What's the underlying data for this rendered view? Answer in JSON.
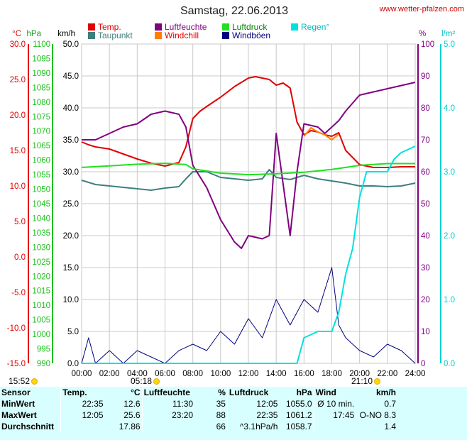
{
  "header": {
    "title": "Samstag, 22.06.2013",
    "site": "www.wetter-pfalzen.com"
  },
  "legend": [
    {
      "label": "Temp.",
      "color": "#e00000"
    },
    {
      "label": "Taupunkt",
      "color": "#3d7f7f"
    },
    {
      "label": "Luftfeuchte",
      "color": "#800080"
    },
    {
      "label": "Windchill",
      "color": "#ff8000"
    },
    {
      "label": "Luftdruck",
      "color": "#20e020"
    },
    {
      "label": "Windböen",
      "color": "#000080"
    },
    {
      "label": "Regen°",
      "color": "#00e0e0"
    }
  ],
  "axis_units": {
    "temp": "°C",
    "pressure": "hPa",
    "wind": "km/h",
    "humidity": "%",
    "rain": "l/m²"
  },
  "markers": {
    "left_time": "15:52",
    "sunrise": "05:18",
    "sunset": "21:10"
  },
  "chart_data": {
    "type": "line",
    "x_unit": "hours",
    "x_ticks": [
      "00:00",
      "02:00",
      "04:00",
      "06:00",
      "08:00",
      "10:00",
      "12:00",
      "14:00",
      "16:00",
      "18:00",
      "20:00",
      "22:00",
      "24:00"
    ],
    "xlim": [
      0,
      24
    ],
    "axes": {
      "wind": {
        "ticks": [
          "0.0",
          "5.0",
          "10.0",
          "15.0",
          "20.0",
          "25.0",
          "30.0",
          "35.0",
          "40.0",
          "45.0",
          "50.0"
        ],
        "range": [
          0,
          50
        ],
        "color": "#000000"
      },
      "temp": {
        "ticks": [
          "-15.0",
          "-10.0",
          "-5.0",
          "0.0",
          "5.0",
          "10.0",
          "15.0",
          "20.0",
          "25.0",
          "30.0"
        ],
        "range": [
          -15,
          30
        ],
        "color": "#e00000"
      },
      "pressure": {
        "ticks": [
          "990",
          "995",
          "1000",
          "1005",
          "1010",
          "1015",
          "1020",
          "1025",
          "1030",
          "1035",
          "1040",
          "1045",
          "1050",
          "1055",
          "1060",
          "1065",
          "1070",
          "1075",
          "1080",
          "1085",
          "1090",
          "1095",
          "1100"
        ],
        "range": [
          990,
          1100
        ],
        "color": "#20c020"
      },
      "humidity": {
        "ticks": [
          "0",
          "10",
          "20",
          "30",
          "40",
          "50",
          "60",
          "70",
          "80",
          "90",
          "100"
        ],
        "range": [
          0,
          100
        ],
        "color": "#800080"
      },
      "rain": {
        "ticks": [
          "0.0",
          "1.0",
          "2.0",
          "3.0",
          "4.0",
          "5.0"
        ],
        "range": [
          0,
          5
        ],
        "color": "#00d0d0"
      }
    },
    "series": [
      {
        "name": "Temp.",
        "axis": "temp",
        "color": "#e00000",
        "points": [
          [
            0,
            16.2
          ],
          [
            0.5,
            15.8
          ],
          [
            1,
            15.5
          ],
          [
            2,
            15.2
          ],
          [
            3,
            14.5
          ],
          [
            4,
            13.8
          ],
          [
            5,
            13.2
          ],
          [
            6,
            12.8
          ],
          [
            7,
            13.3
          ],
          [
            7.5,
            15.5
          ],
          [
            8,
            19.5
          ],
          [
            8.5,
            20.5
          ],
          [
            9,
            21.2
          ],
          [
            10,
            22.5
          ],
          [
            11,
            24.0
          ],
          [
            12,
            25.2
          ],
          [
            12.5,
            25.4
          ],
          [
            13,
            25.2
          ],
          [
            13.5,
            25.0
          ],
          [
            14,
            24.2
          ],
          [
            14.5,
            24.5
          ],
          [
            15,
            23.8
          ],
          [
            15.5,
            19.0
          ],
          [
            16,
            17.2
          ],
          [
            16.5,
            17.8
          ],
          [
            17,
            17.6
          ],
          [
            17.5,
            17.2
          ],
          [
            18,
            17.0
          ],
          [
            18.5,
            17.5
          ],
          [
            19,
            15.0
          ],
          [
            20,
            13.0
          ],
          [
            21,
            12.6
          ],
          [
            22,
            12.6
          ],
          [
            23,
            12.7
          ],
          [
            24,
            12.7
          ]
        ]
      },
      {
        "name": "Taupunkt",
        "axis": "temp",
        "color": "#3d7f7f",
        "points": [
          [
            0,
            10.8
          ],
          [
            1,
            10.2
          ],
          [
            2,
            10.0
          ],
          [
            3,
            9.8
          ],
          [
            4,
            9.6
          ],
          [
            5,
            9.4
          ],
          [
            6,
            9.7
          ],
          [
            7,
            9.9
          ],
          [
            7.5,
            11.0
          ],
          [
            8,
            12.0
          ],
          [
            9,
            12.0
          ],
          [
            10,
            11.2
          ],
          [
            11,
            11.0
          ],
          [
            12,
            10.8
          ],
          [
            13,
            11.0
          ],
          [
            13.5,
            12.3
          ],
          [
            14,
            11.2
          ],
          [
            15,
            10.9
          ],
          [
            16,
            11.5
          ],
          [
            17,
            11.0
          ],
          [
            18,
            10.7
          ],
          [
            19,
            10.4
          ],
          [
            20,
            10.0
          ],
          [
            21,
            10.0
          ],
          [
            22,
            9.9
          ],
          [
            23,
            10.0
          ],
          [
            24,
            10.4
          ]
        ]
      },
      {
        "name": "Windchill",
        "axis": "temp",
        "color": "#ff8000",
        "points": [
          [
            16,
            17.0
          ],
          [
            16.5,
            18.2
          ],
          [
            17,
            17.6
          ],
          [
            17.5,
            17.2
          ],
          [
            18,
            16.5
          ],
          [
            18.5,
            17.3
          ]
        ]
      },
      {
        "name": "Luftfeuchte",
        "axis": "humidity",
        "color": "#800080",
        "points": [
          [
            0,
            70
          ],
          [
            1,
            70
          ],
          [
            2,
            72
          ],
          [
            3,
            74
          ],
          [
            4,
            75
          ],
          [
            5,
            78
          ],
          [
            6,
            79
          ],
          [
            7,
            78
          ],
          [
            7.5,
            74
          ],
          [
            8,
            62
          ],
          [
            9,
            55
          ],
          [
            10,
            45
          ],
          [
            11,
            38
          ],
          [
            11.5,
            36
          ],
          [
            12,
            40
          ],
          [
            13,
            39
          ],
          [
            13.5,
            40
          ],
          [
            14,
            72
          ],
          [
            15,
            40
          ],
          [
            15.5,
            60
          ],
          [
            16,
            75
          ],
          [
            17,
            74
          ],
          [
            17.5,
            72
          ],
          [
            18,
            74
          ],
          [
            18.5,
            76
          ],
          [
            19,
            79
          ],
          [
            20,
            84
          ],
          [
            21,
            85
          ],
          [
            22,
            86
          ],
          [
            23,
            87
          ],
          [
            24,
            88
          ]
        ]
      },
      {
        "name": "Luftdruck",
        "axis": "pressure",
        "color": "#20e020",
        "points": [
          [
            0,
            1057.5
          ],
          [
            2,
            1058.0
          ],
          [
            4,
            1058.6
          ],
          [
            6,
            1058.9
          ],
          [
            7.5,
            1058.5
          ],
          [
            8,
            1057.0
          ],
          [
            10,
            1055.5
          ],
          [
            12,
            1055.0
          ],
          [
            14,
            1055.3
          ],
          [
            16,
            1055.8
          ],
          [
            18,
            1056.8
          ],
          [
            20,
            1058.2
          ],
          [
            22,
            1058.8
          ],
          [
            24,
            1058.8
          ]
        ]
      },
      {
        "name": "Windböen",
        "axis": "wind",
        "color": "#000080",
        "points": [
          [
            0,
            0
          ],
          [
            0.5,
            4
          ],
          [
            1,
            0
          ],
          [
            2,
            2
          ],
          [
            3,
            0
          ],
          [
            4,
            2
          ],
          [
            5,
            1
          ],
          [
            6,
            0
          ],
          [
            7,
            2
          ],
          [
            8,
            3
          ],
          [
            9,
            2
          ],
          [
            10,
            5
          ],
          [
            11,
            3
          ],
          [
            12,
            7
          ],
          [
            13,
            4
          ],
          [
            14,
            10
          ],
          [
            15,
            6
          ],
          [
            16,
            10
          ],
          [
            17,
            8
          ],
          [
            18,
            15
          ],
          [
            18.5,
            6
          ],
          [
            19,
            4
          ],
          [
            20,
            2
          ],
          [
            21,
            1
          ],
          [
            22,
            3
          ],
          [
            23,
            2
          ],
          [
            24,
            0
          ]
        ]
      },
      {
        "name": "Regen°",
        "axis": "rain",
        "color": "#00e0e0",
        "points": [
          [
            0,
            0
          ],
          [
            15.5,
            0
          ],
          [
            16,
            0.4
          ],
          [
            17,
            0.5
          ],
          [
            18,
            0.5
          ],
          [
            18.5,
            0.8
          ],
          [
            19,
            1.4
          ],
          [
            19.5,
            1.8
          ],
          [
            20,
            2.6
          ],
          [
            20.5,
            3.0
          ],
          [
            22,
            3.0
          ],
          [
            22.5,
            3.2
          ],
          [
            23,
            3.3
          ],
          [
            24,
            3.4
          ]
        ]
      }
    ]
  },
  "stats": {
    "col_sensor": "Sensor",
    "col_temp": "Temp.",
    "unit_temp": "°C",
    "col_hum": "Luftfeuchte",
    "unit_hum": "%",
    "col_press": "Luftdruck",
    "unit_press": "hPa",
    "col_wind": "Wind",
    "unit_wind": "km/h",
    "rows": [
      {
        "label": "MinWert",
        "t_time": "22:35",
        "t_val": "12.6",
        "h_time": "11:30",
        "h_val": "35",
        "p_time": "12:05",
        "p_val": "1055.0",
        "w_time": "Ø 10 min.",
        "w_val": "0.7"
      },
      {
        "label": "MaxWert",
        "t_time": "12:05",
        "t_val": "25.6",
        "h_time": "23:20",
        "h_val": "88",
        "p_time": "22:35",
        "p_val": "1061.2",
        "w_time": "17:45",
        "w_val": "O-NO 8.3"
      },
      {
        "label": "Durchschnitt",
        "t_time": "",
        "t_val": "17.86",
        "h_time": "",
        "h_val": "66",
        "p_time": "^3.1hPa/h",
        "p_val": "1058.7",
        "w_time": "",
        "w_val": "1.4"
      }
    ]
  }
}
